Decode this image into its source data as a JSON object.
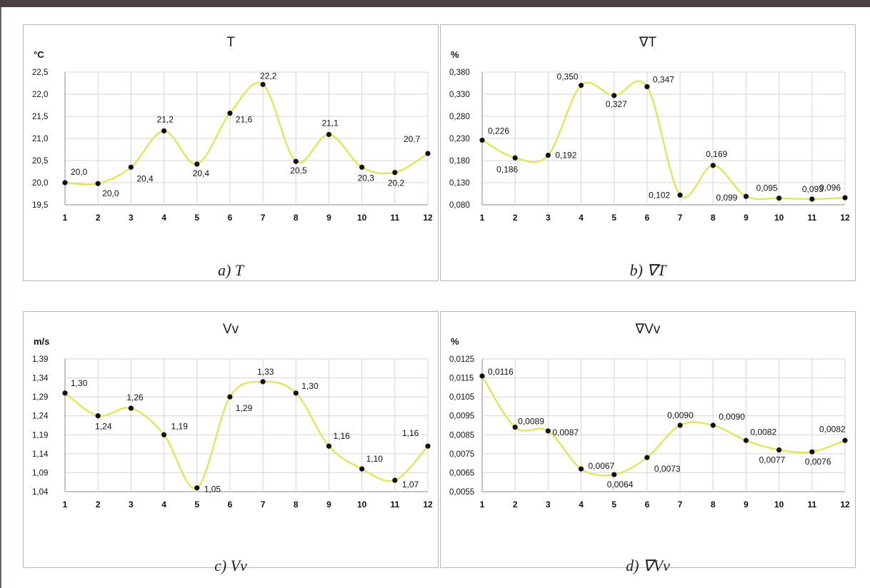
{
  "chart_data": [
    {
      "type": "line",
      "title": "T",
      "ylabel": "°C",
      "caption": "a) T",
      "categories": [
        "1",
        "2",
        "3",
        "4",
        "5",
        "6",
        "7",
        "8",
        "9",
        "10",
        "11",
        "12"
      ],
      "yticks": [
        "19,5",
        "20,0",
        "20,5",
        "21,0",
        "21,5",
        "22,0",
        "22,5"
      ],
      "ylim": [
        19.5,
        22.5
      ],
      "values": [
        20.0,
        19.98,
        20.35,
        21.17,
        20.42,
        21.57,
        22.22,
        20.48,
        21.09,
        20.35,
        20.23,
        20.66
      ],
      "data_labels": [
        "20,0",
        "20,0",
        "20,4",
        "21,2",
        "20,4",
        "21,6",
        "22,2",
        "20,5",
        "21,1",
        "20,3",
        "20,2",
        "20,7"
      ],
      "grid": true,
      "line_color": "#e4e45a"
    },
    {
      "type": "line",
      "title": "∇T",
      "ylabel": "%",
      "caption": "b) ∇T",
      "categories": [
        "1",
        "2",
        "3",
        "4",
        "5",
        "6",
        "7",
        "8",
        "9",
        "10",
        "11",
        "12"
      ],
      "yticks": [
        "0,080",
        "0,130",
        "0,180",
        "0,230",
        "0,280",
        "0,330",
        "0,380"
      ],
      "ylim": [
        0.08,
        0.38
      ],
      "values": [
        0.226,
        0.186,
        0.192,
        0.35,
        0.327,
        0.347,
        0.102,
        0.169,
        0.099,
        0.095,
        0.093,
        0.096
      ],
      "data_labels": [
        "0,226",
        "0,186",
        "0,192",
        "0,350",
        "0,327",
        "0,347",
        "0,102",
        "0,169",
        "0,099",
        "0,095",
        "0,093",
        "0,096"
      ],
      "grid": true,
      "line_color": "#e4e45a"
    },
    {
      "type": "line",
      "title": "Vv",
      "ylabel": "m/s",
      "caption": "c) Vv",
      "categories": [
        "1",
        "2",
        "3",
        "4",
        "5",
        "6",
        "7",
        "8",
        "9",
        "10",
        "11",
        "12"
      ],
      "yticks": [
        "1,04",
        "1,09",
        "1,14",
        "1,19",
        "1,24",
        "1,29",
        "1,34",
        "1,39"
      ],
      "ylim": [
        1.04,
        1.39
      ],
      "values": [
        1.3,
        1.24,
        1.26,
        1.19,
        1.05,
        1.29,
        1.33,
        1.3,
        1.16,
        1.1,
        1.07,
        1.16
      ],
      "data_labels": [
        "1,30",
        "1,24",
        "1,26",
        "1,19",
        "1,05",
        "1,29",
        "1,33",
        "1,30",
        "1,16",
        "1,10",
        "1,07",
        "1,16"
      ],
      "grid": true,
      "line_color": "#e4e45a"
    },
    {
      "type": "line",
      "title": "∇Vv",
      "ylabel": "%",
      "caption": "d) ∇Vv",
      "categories": [
        "1",
        "2",
        "3",
        "4",
        "5",
        "6",
        "7",
        "8",
        "9",
        "10",
        "11",
        "12"
      ],
      "yticks": [
        "0,0055",
        "0,0065",
        "0,0075",
        "0,0085",
        "0,0095",
        "0,0105",
        "0,0115",
        "0,0125"
      ],
      "ylim": [
        0.0055,
        0.0125
      ],
      "values": [
        0.0116,
        0.0089,
        0.0087,
        0.0067,
        0.0064,
        0.0073,
        0.009,
        0.009,
        0.0082,
        0.0077,
        0.0076,
        0.0082
      ],
      "data_labels": [
        "0,0116",
        "0,0089",
        "0,0087",
        "0,0067",
        "0,0064",
        "0,0073",
        "0,0090",
        "0,0090",
        "0,0082",
        "0,0077",
        "0,0076",
        "0,0082"
      ],
      "grid": true,
      "line_color": "#e4e45a"
    }
  ]
}
